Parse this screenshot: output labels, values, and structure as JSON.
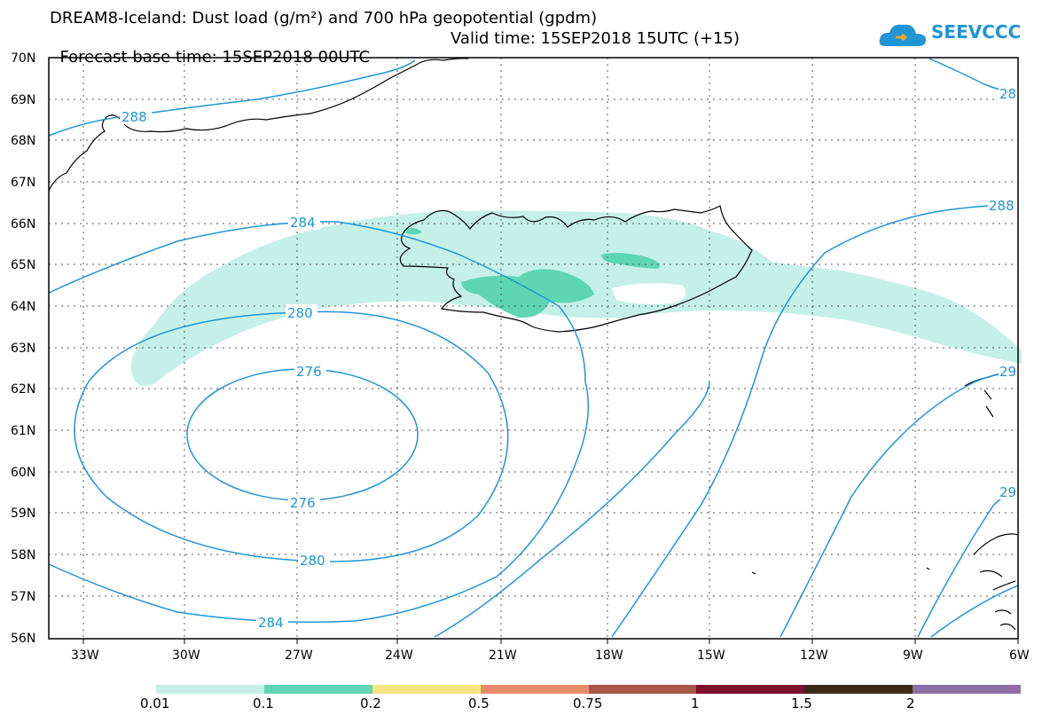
{
  "header": {
    "title_line1": "DREAM8-Iceland: Dust load (g/m²) and 700 hPa geopotential (gpdm)",
    "base_time": "Forecast base time: 15SEP2018 00UTC",
    "valid_time": "Valid time: 15SEP2018 15UTC (+15)"
  },
  "logo": {
    "text": "SEEVCCC",
    "icon": "cloud-icon",
    "color": "#1f95d6"
  },
  "map": {
    "lat_labels": [
      "70N",
      "69N",
      "68N",
      "67N",
      "66N",
      "65N",
      "64N",
      "63N",
      "62N",
      "61N",
      "60N",
      "59N",
      "58N",
      "57N",
      "56N"
    ],
    "lon_labels": [
      "33W",
      "30W",
      "27W",
      "24W",
      "21W",
      "18W",
      "15W",
      "12W",
      "9W",
      "6W"
    ],
    "contour_color": "#1f95d6",
    "dust_light_color": "#c4f0e8",
    "dust_mid_color": "#5ed6b2",
    "contour_labels": [
      "288",
      "284",
      "280",
      "276",
      "276",
      "280",
      "284",
      "288",
      "28",
      "29",
      "29"
    ]
  },
  "legend": {
    "colors": [
      "#c4f0e8",
      "#5ed6b2",
      "#f5e682",
      "#e88c6a",
      "#a9564b",
      "#7e0f2e",
      "#3a2a17",
      "#8e6fa6"
    ],
    "labels": [
      "0.01",
      "0.1",
      "0.2",
      "0.5",
      "0.75",
      "1",
      "1.5",
      "2"
    ]
  }
}
